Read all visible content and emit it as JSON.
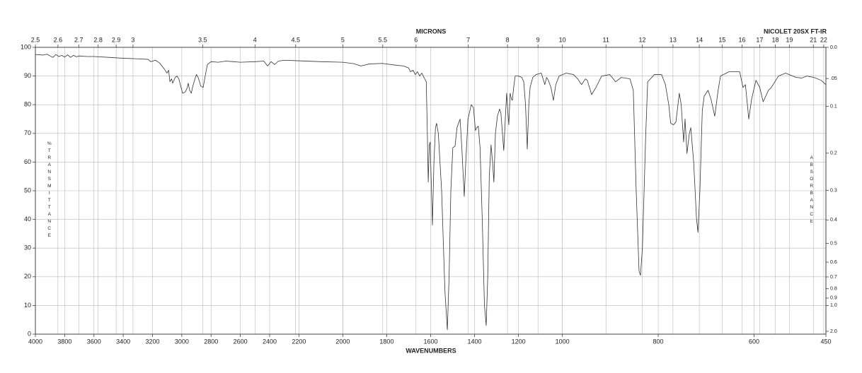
{
  "chart_data": {
    "type": "line",
    "title": "NICOLET 20SX FT-IR",
    "xlabel": "WAVENUMBERS",
    "x2label": "MICRONS",
    "ylabel": "%TRANSMITTANCE",
    "y2label": "ABSORBANCE",
    "xlim": [
      4000,
      450
    ],
    "xscale": "piecewise",
    "xbreaks": [
      2200,
      1000
    ],
    "xticks": [
      4000,
      3800,
      3600,
      3400,
      3200,
      3000,
      2800,
      2600,
      2400,
      2200,
      2000,
      1800,
      1600,
      1400,
      1200,
      1000,
      800,
      600,
      450
    ],
    "x2ticks": [
      2.5,
      2.6,
      2.7,
      2.8,
      2.9,
      3,
      3.5,
      4,
      4.5,
      5,
      5.5,
      6,
      7,
      8,
      9,
      10,
      11,
      12,
      13,
      14,
      15,
      16,
      17,
      18,
      19,
      21,
      22
    ],
    "ylim": [
      0,
      100
    ],
    "yticks": [
      0,
      10,
      20,
      30,
      40,
      50,
      60,
      70,
      80,
      90,
      100
    ],
    "y2scale": "absorbance",
    "y2ticks": [
      {
        "value": 0,
        "label": "0.0"
      },
      {
        "value": 0.05,
        "label": ".05"
      },
      0.1,
      0.2,
      0.3,
      0.4,
      0.5,
      0.6,
      0.7,
      0.8,
      0.9,
      {
        "value": 1,
        "label": "1.0"
      },
      {
        "value": 2,
        "label": "2.0"
      }
    ],
    "grid": true,
    "color": "#333333",
    "x": [
      4000,
      3950,
      3920,
      3900,
      3880,
      3860,
      3840,
      3820,
      3800,
      3780,
      3760,
      3740,
      3720,
      3700,
      3650,
      3600,
      3500,
      3400,
      3300,
      3230,
      3212,
      3180,
      3150,
      3120,
      3101,
      3090,
      3081,
      3070,
      3062,
      3045,
      3033,
      3020,
      3005,
      2994,
      2975,
      2962,
      2956,
      2946,
      2935,
      2927,
      2910,
      2900,
      2888,
      2870,
      2854,
      2840,
      2825,
      2800,
      2750,
      2700,
      2646,
      2600,
      2500,
      2440,
      2414,
      2390,
      2366,
      2340,
      2300,
      2200,
      2100,
      2000,
      1950,
      1917,
      1880,
      1821,
      1760,
      1724,
      1700,
      1692,
      1680,
      1670,
      1660,
      1650,
      1640,
      1627,
      1620,
      1615,
      1611,
      1606,
      1602,
      1598,
      1592,
      1585,
      1578,
      1573,
      1565,
      1550,
      1535,
      1524,
      1516,
      1508,
      1499,
      1489,
      1480,
      1466,
      1458,
      1447,
      1440,
      1430,
      1415,
      1405,
      1396,
      1390,
      1383,
      1375,
      1365,
      1355,
      1347,
      1340,
      1333,
      1325,
      1318,
      1312,
      1305,
      1296,
      1286,
      1280,
      1267,
      1260,
      1254,
      1249,
      1244,
      1238,
      1232,
      1228,
      1222,
      1215,
      1200,
      1185,
      1176,
      1168,
      1160,
      1153,
      1147,
      1135,
      1120,
      1096,
      1088,
      1080,
      1072,
      1064,
      1052,
      1041,
      1030,
      1015,
      992,
      977,
      968,
      960,
      952,
      948,
      939,
      930,
      918,
      901,
      889,
      877,
      859,
      852,
      846,
      840,
      837,
      833,
      826,
      822,
      808,
      793,
      785,
      778,
      774,
      768,
      763,
      756,
      752,
      747,
      744,
      740,
      735,
      732,
      726,
      720,
      717,
      713,
      708,
      704,
      696,
      690,
      682,
      675,
      670,
      652,
      630,
      623,
      618,
      611,
      605,
      596,
      588,
      581,
      570,
      564,
      549,
      534,
      512,
      500,
      490,
      475,
      460,
      450
    ],
    "values": [
      97.5,
      97.3,
      97.6,
      97,
      96.5,
      97.5,
      96.8,
      97.2,
      96.6,
      97.4,
      96.5,
      97.2,
      96.7,
      97,
      96.8,
      96.8,
      96.5,
      96.2,
      96,
      95.8,
      95,
      95.5,
      94.5,
      92.5,
      91,
      92,
      88,
      89,
      87.5,
      89.5,
      90,
      89,
      86,
      84,
      84.5,
      86,
      87.5,
      85,
      84,
      86,
      89,
      90.5,
      89.5,
      86.5,
      86,
      90,
      94,
      95,
      94.8,
      95.2,
      95,
      94.8,
      95,
      95.2,
      93.5,
      95,
      94,
      95.2,
      95.5,
      95.3,
      95,
      94.8,
      94.3,
      93.5,
      94.2,
      94.4,
      93.8,
      93.5,
      92.8,
      91.5,
      92,
      90.5,
      91.5,
      90,
      91,
      89,
      88,
      70,
      53,
      66,
      67,
      55,
      38,
      60,
      72,
      73.5,
      70,
      50,
      15,
      1.5,
      20,
      50,
      65,
      65.5,
      72,
      75,
      65,
      48,
      60,
      75,
      80,
      79,
      71,
      72,
      72.5,
      65,
      40,
      10,
      3,
      20,
      55,
      66,
      60,
      53,
      70,
      76,
      78.5,
      77,
      64,
      75,
      84,
      78,
      73,
      84,
      82,
      81.5,
      86,
      90,
      90,
      89.5,
      88,
      80,
      64.5,
      80,
      86,
      89.5,
      90.5,
      91,
      89,
      87,
      89.5,
      88.5,
      86,
      81.5,
      87,
      90,
      91,
      90.5,
      89,
      87,
      89,
      88.5,
      83.5,
      86,
      90,
      90.5,
      88,
      89.5,
      89,
      85,
      50,
      22,
      20.5,
      30,
      70,
      88,
      90.5,
      90.5,
      87,
      80,
      73.5,
      73,
      74,
      84,
      80,
      67,
      75,
      63,
      70,
      72,
      60,
      40,
      35.5,
      50,
      78,
      83,
      85,
      82,
      76,
      85,
      90,
      91.5,
      91.5,
      86,
      87,
      75,
      82,
      88.5,
      86,
      81,
      85,
      86,
      90,
      91,
      89.5,
      89.3,
      90,
      89.5,
      88.5,
      87
    ]
  }
}
